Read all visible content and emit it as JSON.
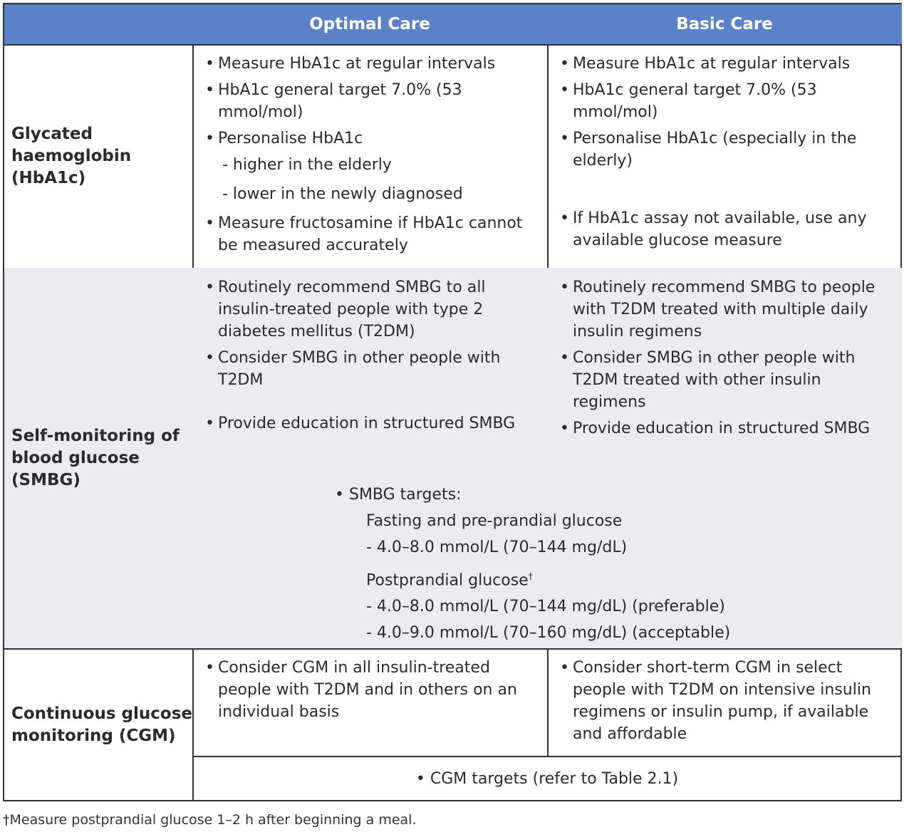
{
  "header": {
    "col1": "",
    "col2": "Optimal Care",
    "col3": "Basic Care"
  },
  "rows": {
    "hba1c": {
      "label": "Glycated haemoglobin (HbA1c)",
      "optimal": [
        "Measure HbA1c at regular intervals",
        "HbA1c general target 7.0% (53 mmol/mol)",
        "Personalise HbA1c",
        "- higher in the elderly",
        "- lower in the newly diagnosed",
        "Measure fructosamine if HbA1c cannot be measured accurately"
      ],
      "basic": [
        "Measure HbA1c at regular intervals",
        "HbA1c general target 7.0% (53 mmol/mol)",
        "Personalise HbA1c (especially in the elderly)",
        "If HbA1c assay not available, use any available glucose measure"
      ]
    },
    "smbg": {
      "label": "Self-monitoring of blood glucose (SMBG)",
      "optimal": [
        "Routinely recommend SMBG to all insulin-treated people with type 2 diabetes mellitus (T2DM)",
        "Consider SMBG in other people with T2DM",
        "Provide education in structured SMBG"
      ],
      "basic": [
        "Routinely recommend SMBG to people with T2DM treated with multiple daily insulin regimens",
        "Consider SMBG in other people with T2DM treated with other insulin regimens",
        "Provide education in structured SMBG"
      ],
      "targets": {
        "title": "SMBG targets:",
        "fasting": "Fasting and pre-prandial glucose",
        "fasting_range": "- 4.0–8.0 mmol/L (70–144 mg/dL)",
        "post": "Postprandial glucose",
        "post_mark": "†",
        "post_pref": "- 4.0–8.0 mmol/L (70–144 mg/dL) (preferable)",
        "post_acc": "- 4.0–9.0 mmol/L (70–160 mg/dL) (acceptable)"
      }
    },
    "cgm": {
      "label": "Continuous glucose monitoring (CGM)",
      "optimal": [
        "Consider CGM in all insulin-treated people with T2DM and in others on an individual basis"
      ],
      "basic": [
        "Consider short-term CGM in select people with T2DM on intensive insulin regimens or insulin pump, if available and affordable"
      ],
      "targets": "CGM targets (refer to Table 2.1)"
    }
  },
  "footnote": "†Measure postprandial glucose 1–2 h after beginning a meal.",
  "colors": {
    "header": "#5b82c8",
    "shade": "#ebebf0"
  }
}
